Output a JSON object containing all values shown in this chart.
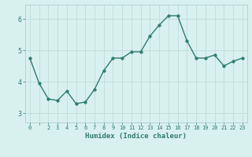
{
  "x": [
    0,
    1,
    2,
    3,
    4,
    5,
    6,
    7,
    8,
    9,
    10,
    11,
    12,
    13,
    14,
    15,
    16,
    17,
    18,
    19,
    20,
    21,
    22,
    23
  ],
  "y": [
    4.75,
    3.95,
    3.45,
    3.4,
    3.7,
    3.3,
    3.35,
    3.75,
    4.35,
    4.75,
    4.75,
    4.95,
    4.95,
    5.45,
    5.8,
    6.1,
    6.1,
    5.3,
    4.75,
    4.75,
    4.85,
    4.5,
    4.65,
    4.75
  ],
  "line_color": "#2e7d6e",
  "marker_color": "#2e7d6e",
  "bg_color": "#d8f0ee",
  "grid_color": "#c0dcd8",
  "xlabel": "Humidex (Indice chaleur)",
  "ylim": [
    2.7,
    6.45
  ],
  "xlim": [
    -0.5,
    23.5
  ],
  "yticks": [
    3,
    4,
    5,
    6
  ],
  "xtick_labels": [
    "0",
    "",
    "2",
    "3",
    "4",
    "5",
    "6",
    "7",
    "8",
    "9",
    "10",
    "11",
    "12",
    "13",
    "14",
    "15",
    "16",
    "17",
    "18",
    "19",
    "20",
    "21",
    "22",
    "23"
  ],
  "xticks": [
    0,
    1,
    2,
    3,
    4,
    5,
    6,
    7,
    8,
    9,
    10,
    11,
    12,
    13,
    14,
    15,
    16,
    17,
    18,
    19,
    20,
    21,
    22,
    23
  ],
  "tick_color": "#2e7d6e",
  "label_color": "#2e7d6e",
  "marker_size": 2.5,
  "line_width": 1.0
}
